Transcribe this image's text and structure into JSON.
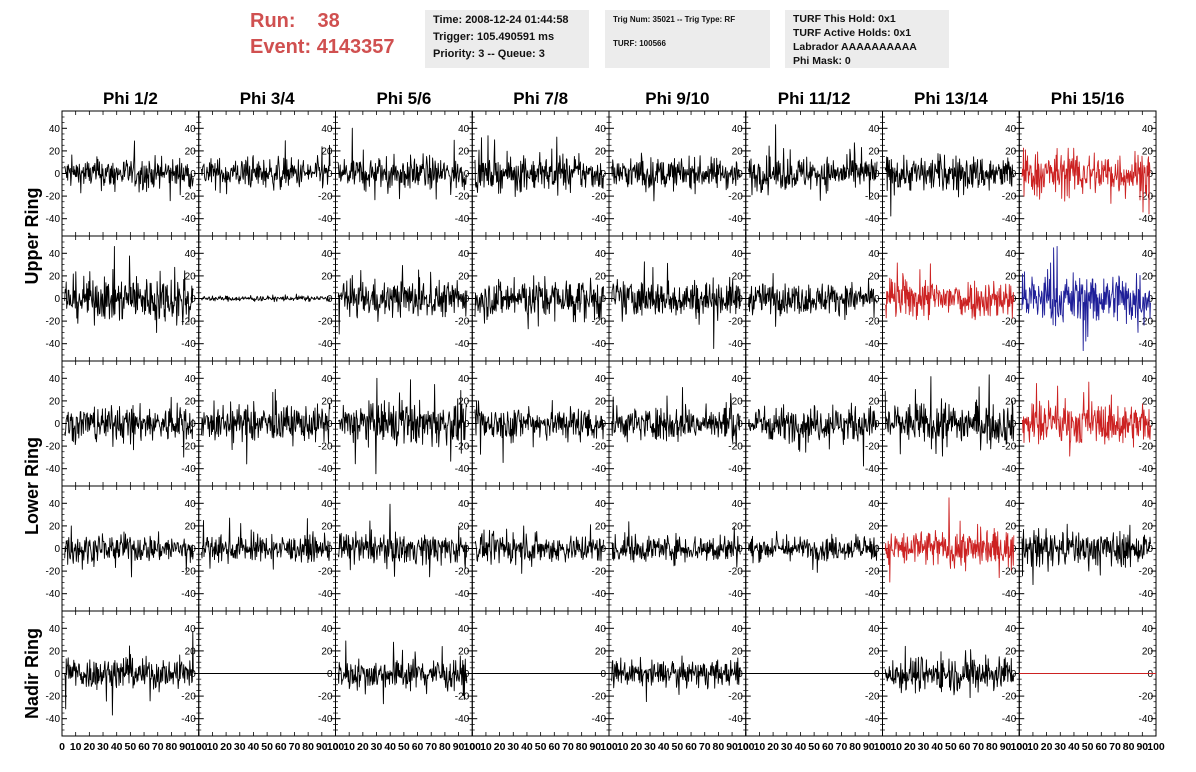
{
  "header": {
    "run_label": "Run:",
    "run_value": "38",
    "event_label": "Event:",
    "event_value": "4143357",
    "time_info": [
      "Time: 2008-12-24 01:44:58",
      "Trigger: 105.490591 ms",
      "Priority: 3 -- Queue: 3"
    ],
    "trig_info": [
      "Trig Num: 35021 -- Trig Type: RF",
      "",
      "TURF: 100566"
    ],
    "turf_info": [
      "TURF This Hold: 0x1",
      "TURF Active Holds: 0x1",
      "Labrador AAAAAAAAAA",
      "Phi Mask: 0"
    ]
  },
  "colors": {
    "normal": "#000000",
    "red": "#cc2222",
    "blue": "#1f1f99",
    "header_red": "#d05050",
    "info_bg": "#ececec"
  },
  "chart_data": {
    "type": "line",
    "columns": [
      "Phi 1/2",
      "Phi 3/4",
      "Phi 5/6",
      "Phi 7/8",
      "Phi 9/10",
      "Phi 11/12",
      "Phi 13/14",
      "Phi 15/16"
    ],
    "rows": [
      "Upper Ring",
      "Upper Ring",
      "Lower Ring",
      "Lower Ring",
      "Nadir Ring"
    ],
    "row_labels": [
      {
        "label": "Upper Ring",
        "rows": [
          0,
          1
        ]
      },
      {
        "label": "Lower Ring",
        "rows": [
          2,
          3
        ]
      },
      {
        "label": "Nadir Ring",
        "rows": [
          4
        ]
      }
    ],
    "xlim": [
      0,
      100
    ],
    "ylim": [
      -50,
      50
    ],
    "x_ticks": [
      0,
      10,
      20,
      30,
      40,
      50,
      60,
      70,
      80,
      90,
      100
    ],
    "x_tick_labels": [
      "0",
      "10",
      "20",
      "30",
      "40",
      "50",
      "60",
      "70",
      "80",
      "90",
      "100"
    ],
    "y_ticks": [
      -40,
      -20,
      0,
      20,
      40
    ],
    "y_tick_labels": [
      "-40",
      "-20",
      "0",
      "20",
      "40"
    ],
    "traces": [
      [
        {
          "amp": 12,
          "color": "normal"
        },
        {
          "amp": 12,
          "color": "normal"
        },
        {
          "amp": 13,
          "color": "normal"
        },
        {
          "amp": 13,
          "color": "normal"
        },
        {
          "amp": 12,
          "color": "normal"
        },
        {
          "amp": 13,
          "color": "normal"
        },
        {
          "amp": 14,
          "color": "normal"
        },
        {
          "amp": 18,
          "color": "red"
        }
      ],
      [
        {
          "amp": 18,
          "color": "normal"
        },
        {
          "amp": 2,
          "color": "normal"
        },
        {
          "amp": 14,
          "color": "normal"
        },
        {
          "amp": 16,
          "color": "normal"
        },
        {
          "amp": 15,
          "color": "normal"
        },
        {
          "amp": 12,
          "color": "normal"
        },
        {
          "amp": 16,
          "color": "red"
        },
        {
          "amp": 20,
          "color": "blue"
        }
      ],
      [
        {
          "amp": 14,
          "color": "normal"
        },
        {
          "amp": 14,
          "color": "normal"
        },
        {
          "amp": 17,
          "color": "normal"
        },
        {
          "amp": 14,
          "color": "normal"
        },
        {
          "amp": 13,
          "color": "normal"
        },
        {
          "amp": 14,
          "color": "normal"
        },
        {
          "amp": 16,
          "color": "normal"
        },
        {
          "amp": 17,
          "color": "red"
        }
      ],
      [
        {
          "amp": 11,
          "color": "normal"
        },
        {
          "amp": 10,
          "color": "normal"
        },
        {
          "amp": 12,
          "color": "normal"
        },
        {
          "amp": 11,
          "color": "normal"
        },
        {
          "amp": 11,
          "color": "normal"
        },
        {
          "amp": 9,
          "color": "normal"
        },
        {
          "amp": 15,
          "color": "red"
        },
        {
          "amp": 14,
          "color": "normal"
        }
      ],
      [
        {
          "amp": 13,
          "color": "normal"
        },
        {
          "amp": 0,
          "color": "normal"
        },
        {
          "amp": 12,
          "color": "normal"
        },
        {
          "amp": 0,
          "color": "normal"
        },
        {
          "amp": 10,
          "color": "normal"
        },
        {
          "amp": 0,
          "color": "normal"
        },
        {
          "amp": 14,
          "color": "normal"
        },
        {
          "amp": 0,
          "color": "red"
        }
      ]
    ]
  }
}
